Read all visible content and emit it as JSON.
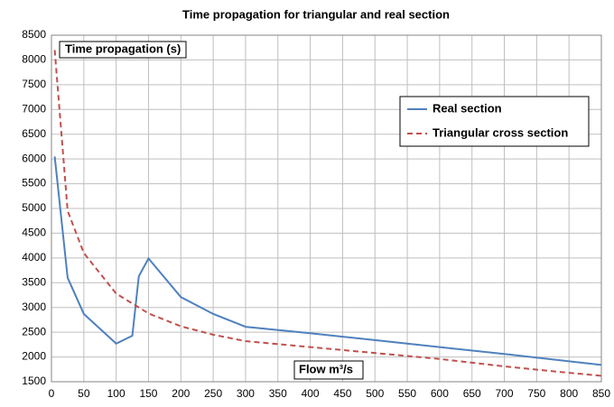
{
  "chart_data": {
    "type": "line",
    "title": "Time propagation for triangular and real section",
    "annotations": [
      "Time propagation (s)",
      "Flow m³/s"
    ],
    "xlim": [
      0,
      850
    ],
    "xticks": [
      0,
      50,
      100,
      150,
      200,
      250,
      300,
      350,
      400,
      450,
      500,
      550,
      600,
      650,
      700,
      750,
      800,
      850
    ],
    "ylim": [
      1500,
      8500
    ],
    "yticks": [
      1500,
      2000,
      2500,
      3000,
      3500,
      4000,
      4500,
      5000,
      5500,
      6000,
      6500,
      7000,
      7500,
      8000,
      8500
    ],
    "grid": true,
    "legend": "right",
    "series": [
      {
        "name": "Real section",
        "color": "#4f81bd",
        "dashed": false,
        "x": [
          5,
          25,
          50,
          100,
          125,
          135,
          150,
          200,
          250,
          300,
          400,
          500,
          600,
          700,
          850
        ],
        "values": [
          6050,
          3600,
          2870,
          2270,
          2430,
          3630,
          3990,
          3210,
          2870,
          2610,
          2480,
          2340,
          2200,
          2060,
          1840
        ]
      },
      {
        "name": "Triangular cross section",
        "color": "#c0504d",
        "dashed": true,
        "x": [
          5,
          25,
          50,
          100,
          150,
          200,
          250,
          300,
          400,
          500,
          600,
          700,
          800,
          850
        ],
        "values": [
          8200,
          4950,
          4100,
          3280,
          2880,
          2620,
          2450,
          2320,
          2200,
          2080,
          1960,
          1810,
          1680,
          1620
        ]
      }
    ]
  }
}
